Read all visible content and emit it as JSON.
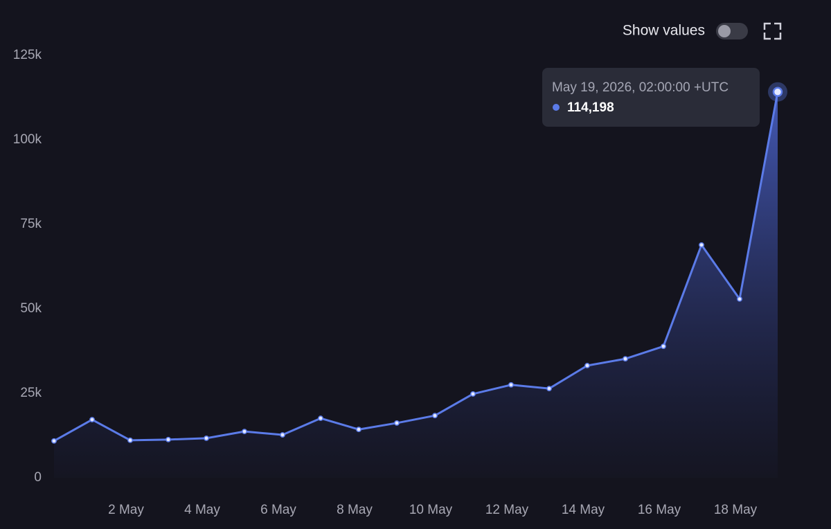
{
  "chart_data": {
    "type": "area",
    "x": [
      "2026-04-30",
      "2026-05-01",
      "2026-05-02",
      "2026-05-03",
      "2026-05-04",
      "2026-05-05",
      "2026-05-06",
      "2026-05-07",
      "2026-05-08",
      "2026-05-09",
      "2026-05-10",
      "2026-05-11",
      "2026-05-12",
      "2026-05-13",
      "2026-05-14",
      "2026-05-15",
      "2026-05-16",
      "2026-05-17",
      "2026-05-18",
      "2026-05-19"
    ],
    "series": [
      {
        "color": "#5b7be8",
        "values": [
          10900,
          17200,
          11100,
          11300,
          11700,
          13700,
          12700,
          17600,
          14300,
          16200,
          18400,
          24800,
          27500,
          26400,
          33200,
          35200,
          38900,
          68900,
          52900,
          114198
        ],
        "value_labels": [
          null,
          null,
          null,
          null,
          null,
          null,
          null,
          null,
          null,
          null,
          null,
          null,
          null,
          null,
          null,
          null,
          null,
          null,
          null,
          "114,198"
        ]
      }
    ],
    "tooltip_title": "May 19, 2026, 02:00:00 +UTC",
    "xlim": [
      "2026-04-30",
      "2026-05-19"
    ],
    "xticks": [
      {
        "value": "2026-05-02",
        "label": "2 May"
      },
      {
        "value": "2026-05-04",
        "label": "4 May"
      },
      {
        "value": "2026-05-06",
        "label": "6 May"
      },
      {
        "value": "2026-05-08",
        "label": "8 May"
      },
      {
        "value": "2026-05-10",
        "label": "10 May"
      },
      {
        "value": "2026-05-12",
        "label": "12 May"
      },
      {
        "value": "2026-05-14",
        "label": "14 May"
      },
      {
        "value": "2026-05-16",
        "label": "16 May"
      },
      {
        "value": "2026-05-18",
        "label": "18 May"
      }
    ],
    "ylim": [
      0,
      125000
    ],
    "yticks": [
      0,
      {
        "value": 25000,
        "label": "25k"
      },
      {
        "value": 50000,
        "label": "50k"
      },
      {
        "value": 75000,
        "label": "75k"
      },
      {
        "value": 100000,
        "label": "100k"
      },
      {
        "value": 125000,
        "label": "125k"
      }
    ],
    "grid": false,
    "toggle_label": "Show values",
    "show_values": false
  }
}
